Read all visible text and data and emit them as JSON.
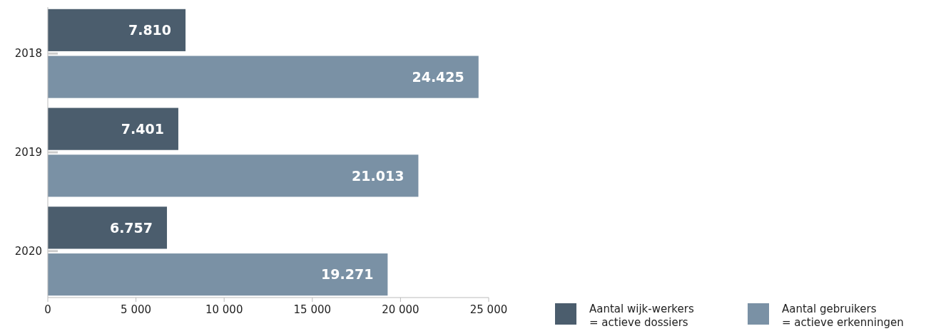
{
  "chart_data": {
    "type": "bar",
    "orientation": "horizontal",
    "categories": [
      "2018",
      "2019",
      "2020"
    ],
    "series": [
      {
        "name": "Aantal wijk-werkers\n= actieve dossiers",
        "color": "#4b5d6d",
        "values": [
          7810,
          7401,
          6757
        ],
        "value_labels": [
          "7.810",
          "7.401",
          "6.757"
        ]
      },
      {
        "name": "Aantal gebruikers\n= actieve erkenningen",
        "color": "#7a91a5",
        "values": [
          24425,
          21013,
          19271
        ],
        "value_labels": [
          "24.425",
          "21.013",
          "19.271"
        ]
      }
    ],
    "xlim": [
      0,
      25000
    ],
    "xticks": [
      0,
      {
        "value": 5000,
        "label": "5 000"
      },
      {
        "value": 10000,
        "label": "10 000"
      },
      {
        "value": 15000,
        "label": "15 000"
      },
      {
        "value": 20000,
        "label": "20 000"
      },
      {
        "value": 25000,
        "label": "25 000"
      }
    ],
    "grid": false,
    "legend": "bottom right"
  }
}
